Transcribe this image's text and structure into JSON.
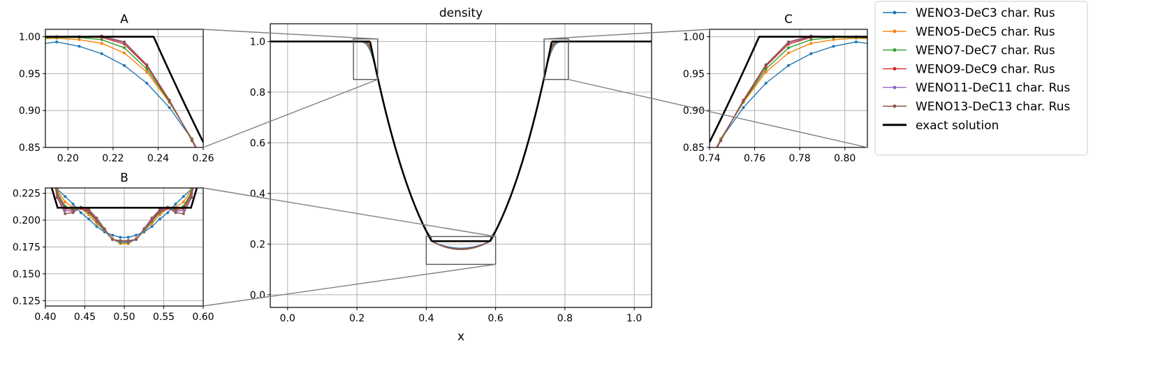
{
  "chart_data": {
    "type": "line",
    "legend": {
      "placement": "outside-right",
      "entries": [
        {
          "name": "WENO3-DeC3 char. Rus",
          "color": "#1f77b4",
          "marker": "dot"
        },
        {
          "name": "WENO5-DeC5 char. Rus",
          "color": "#ff7f0e",
          "marker": "dot"
        },
        {
          "name": "WENO7-DeC7 char. Rus",
          "color": "#2ca02c",
          "marker": "dot"
        },
        {
          "name": "WENO9-DeC9 char. Rus",
          "color": "#d62728",
          "marker": "dot"
        },
        {
          "name": "WENO11-DeC11 char. Rus",
          "color": "#9467bd",
          "marker": "dot"
        },
        {
          "name": "WENO13-DeC13 char. Rus",
          "color": "#8c564b",
          "marker": "dot"
        },
        {
          "name": "exact solution",
          "color": "#000000",
          "marker": "none"
        }
      ]
    },
    "main": {
      "title": "density",
      "xlabel": "x",
      "ylabel": "",
      "xlim": [
        -0.05,
        1.05
      ],
      "ylim": [
        -0.05,
        1.07
      ],
      "xticks": [
        "0.0",
        "0.2",
        "0.4",
        "0.6",
        "0.8",
        "1.0"
      ],
      "xtick_values": [
        0.0,
        0.2,
        0.4,
        0.6,
        0.8,
        1.0
      ],
      "yticks": [
        "0.0",
        "0.2",
        "0.4",
        "0.6",
        "0.8",
        "1.0"
      ],
      "ytick_values": [
        0.0,
        0.2,
        0.4,
        0.6,
        0.8,
        1.0
      ],
      "grid": true,
      "zoom_boxes": [
        {
          "label": "A",
          "x": [
            0.19,
            0.26
          ],
          "y": [
            0.85,
            1.01
          ]
        },
        {
          "label": "B",
          "x": [
            0.4,
            0.6
          ],
          "y": [
            0.12,
            0.23
          ]
        },
        {
          "label": "C",
          "x": [
            0.74,
            0.81
          ],
          "y": [
            0.85,
            1.01
          ]
        }
      ]
    },
    "insets": [
      {
        "title": "A",
        "xlim": [
          0.19,
          0.26
        ],
        "ylim": [
          0.85,
          1.01
        ],
        "xticks": [
          "0.20",
          "0.22",
          "0.24",
          "0.26"
        ],
        "xtick_values": [
          0.2,
          0.22,
          0.24,
          0.26
        ],
        "yticks": [
          "0.85",
          "0.90",
          "0.95",
          "1.00"
        ],
        "ytick_values": [
          0.85,
          0.9,
          0.95,
          1.0
        ],
        "grid": true
      },
      {
        "title": "B",
        "xlim": [
          0.4,
          0.6
        ],
        "ylim": [
          0.12,
          0.23
        ],
        "xticks": [
          "0.40",
          "0.45",
          "0.50",
          "0.55",
          "0.60"
        ],
        "xtick_values": [
          0.4,
          0.45,
          0.5,
          0.55,
          0.6
        ],
        "yticks": [
          "0.125",
          "0.150",
          "0.175",
          "0.200",
          "0.225"
        ],
        "ytick_values": [
          0.125,
          0.15,
          0.175,
          0.2,
          0.225
        ],
        "grid": true
      },
      {
        "title": "C",
        "xlim": [
          0.74,
          0.81
        ],
        "ylim": [
          0.85,
          1.01
        ],
        "xticks": [
          "0.74",
          "0.76",
          "0.78",
          "0.80"
        ],
        "xtick_values": [
          0.74,
          0.76,
          0.78,
          0.8
        ],
        "yticks": [
          "0.85",
          "0.90",
          "0.95",
          "1.00"
        ],
        "ytick_values": [
          0.85,
          0.9,
          0.95,
          1.0
        ],
        "grid": true
      }
    ],
    "exact_solution": {
      "x": [
        0.0,
        0.238,
        0.4155,
        0.5845,
        0.762,
        1.0
      ],
      "y": [
        1.0,
        1.0,
        0.2116,
        0.2116,
        1.0,
        1.0
      ],
      "wave_shape": "rarefaction"
    },
    "numerical_minimum": {
      "x": 0.5,
      "y_range": [
        0.178,
        0.184
      ]
    },
    "series": [
      {
        "name": "WENO3-DeC3 char. Rus",
        "x_left_zoom": [
          0.195,
          0.205,
          0.215,
          0.225,
          0.235,
          0.245,
          0.255
        ],
        "y_left_zoom": [
          0.993,
          0.987,
          0.977,
          0.961,
          0.937,
          0.904,
          0.861
        ],
        "x_center_zoom": [
          0.415,
          0.425,
          0.435,
          0.445,
          0.455,
          0.465,
          0.475,
          0.485,
          0.495,
          0.505,
          0.515,
          0.525,
          0.535,
          0.545,
          0.555,
          0.565,
          0.575,
          0.585
        ],
        "y_center_zoom": [
          0.229,
          0.222,
          0.215,
          0.207,
          0.201,
          0.194,
          0.189,
          0.186,
          0.184,
          0.184,
          0.186,
          0.189,
          0.194,
          0.201,
          0.207,
          0.215,
          0.222,
          0.229
        ]
      },
      {
        "name": "WENO5-DeC5 char. Rus",
        "x_left_zoom": [
          0.195,
          0.205,
          0.215,
          0.225,
          0.235,
          0.245,
          0.255
        ],
        "y_left_zoom": [
          0.998,
          0.996,
          0.991,
          0.978,
          0.952,
          0.911,
          0.862
        ],
        "x_center_zoom": [
          0.415,
          0.425,
          0.435,
          0.445,
          0.455,
          0.465,
          0.475,
          0.485,
          0.495,
          0.505,
          0.515,
          0.525,
          0.535,
          0.545,
          0.555,
          0.565,
          0.575,
          0.585
        ],
        "y_center_zoom": [
          0.228,
          0.217,
          0.212,
          0.211,
          0.205,
          0.197,
          0.19,
          0.183,
          0.178,
          0.178,
          0.183,
          0.19,
          0.197,
          0.205,
          0.211,
          0.212,
          0.217,
          0.228
        ]
      },
      {
        "name": "WENO7-DeC7 char. Rus",
        "x_left_zoom": [
          0.195,
          0.205,
          0.215,
          0.225,
          0.235,
          0.245,
          0.255
        ],
        "y_left_zoom": [
          0.999,
          0.999,
          0.996,
          0.985,
          0.956,
          0.912,
          0.861
        ],
        "x_center_zoom": [
          0.415,
          0.425,
          0.435,
          0.445,
          0.455,
          0.465,
          0.475,
          0.485,
          0.495,
          0.505,
          0.515,
          0.525,
          0.535,
          0.545,
          0.555,
          0.565,
          0.575,
          0.585
        ],
        "y_center_zoom": [
          0.226,
          0.213,
          0.21,
          0.211,
          0.207,
          0.199,
          0.19,
          0.182,
          0.179,
          0.179,
          0.182,
          0.19,
          0.199,
          0.207,
          0.211,
          0.21,
          0.213,
          0.226
        ]
      },
      {
        "name": "WENO9-DeC9 char. Rus",
        "x_left_zoom": [
          0.195,
          0.205,
          0.215,
          0.225,
          0.235,
          0.245,
          0.255
        ],
        "y_left_zoom": [
          1.0,
          1.0,
          0.999,
          0.99,
          0.96,
          0.913,
          0.86
        ],
        "x_center_zoom": [
          0.415,
          0.425,
          0.435,
          0.445,
          0.455,
          0.465,
          0.475,
          0.485,
          0.495,
          0.505,
          0.515,
          0.525,
          0.535,
          0.545,
          0.555,
          0.565,
          0.575,
          0.585
        ],
        "y_center_zoom": [
          0.224,
          0.211,
          0.209,
          0.211,
          0.208,
          0.2,
          0.191,
          0.182,
          0.18,
          0.18,
          0.182,
          0.191,
          0.2,
          0.208,
          0.211,
          0.209,
          0.211,
          0.224
        ]
      },
      {
        "name": "WENO11-DeC11 char. Rus",
        "x_left_zoom": [
          0.195,
          0.205,
          0.215,
          0.225,
          0.235,
          0.245,
          0.255
        ],
        "y_left_zoom": [
          1.0,
          1.0,
          1.0,
          0.992,
          0.962,
          0.914,
          0.86
        ],
        "x_center_zoom": [
          0.415,
          0.425,
          0.435,
          0.445,
          0.455,
          0.465,
          0.475,
          0.485,
          0.495,
          0.505,
          0.515,
          0.525,
          0.535,
          0.545,
          0.555,
          0.565,
          0.575,
          0.585
        ],
        "y_center_zoom": [
          0.222,
          0.209,
          0.208,
          0.212,
          0.209,
          0.201,
          0.191,
          0.182,
          0.18,
          0.18,
          0.182,
          0.191,
          0.201,
          0.209,
          0.212,
          0.208,
          0.209,
          0.222
        ]
      },
      {
        "name": "WENO13-DeC13 char. Rus",
        "x_left_zoom": [
          0.195,
          0.205,
          0.215,
          0.225,
          0.235,
          0.245,
          0.255
        ],
        "y_left_zoom": [
          1.0,
          1.0,
          1.001,
          0.993,
          0.962,
          0.914,
          0.859
        ],
        "x_center_zoom": [
          0.415,
          0.425,
          0.435,
          0.445,
          0.455,
          0.465,
          0.475,
          0.485,
          0.495,
          0.505,
          0.515,
          0.525,
          0.535,
          0.545,
          0.555,
          0.565,
          0.575,
          0.585
        ],
        "y_center_zoom": [
          0.221,
          0.206,
          0.207,
          0.212,
          0.21,
          0.202,
          0.192,
          0.182,
          0.181,
          0.181,
          0.182,
          0.192,
          0.202,
          0.21,
          0.212,
          0.207,
          0.206,
          0.221
        ]
      }
    ]
  }
}
